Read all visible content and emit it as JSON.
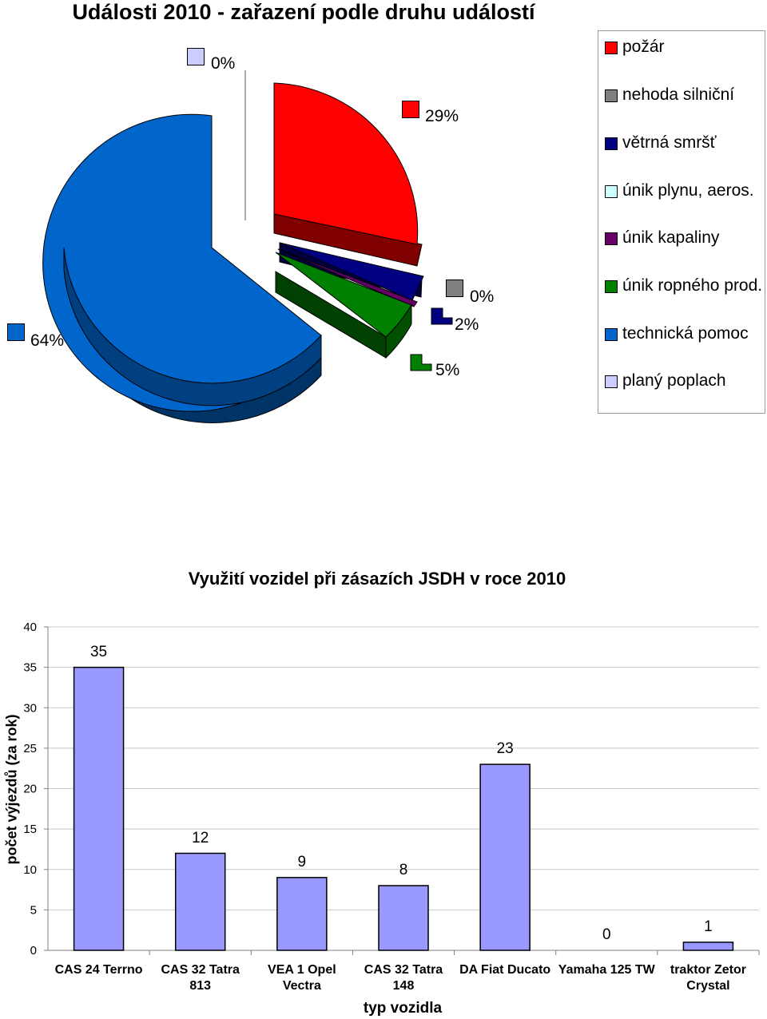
{
  "pie_chart": {
    "title": "Události 2010 - zařazení podle druhu událostí",
    "legend": [
      {
        "label": "požár",
        "color": "#ff0000"
      },
      {
        "label": "nehoda silniční",
        "color": "#808080"
      },
      {
        "label": "větrná smršť",
        "color": "#000080"
      },
      {
        "label": "únik plynu, aeros.",
        "color": "#ccffff"
      },
      {
        "label": "únik kapaliny",
        "color": "#660066"
      },
      {
        "label": "únik ropného prod.",
        "color": "#008000"
      },
      {
        "label": "technická pomoc",
        "color": "#0066cc"
      },
      {
        "label": "planý poplach",
        "color": "#ccccff"
      }
    ],
    "data_labels": {
      "pozar": "29%",
      "nehoda": "0%",
      "vetrna": "2%",
      "ropne": "5%",
      "technicka": "64%",
      "plany": "0%"
    }
  },
  "bar_chart": {
    "title": "Využití vozidel při zásazích JSDH v roce 2010",
    "ylabel": "počet výjezdů (za rok)",
    "xlabel": "typ vozidla",
    "y_ticks": [
      "0",
      "5",
      "10",
      "15",
      "20",
      "25",
      "30",
      "35",
      "40"
    ],
    "value_labels": [
      "35",
      "12",
      "9",
      "8",
      "23",
      "0",
      "1"
    ],
    "category_labels": [
      "CAS 24 Terrno",
      "CAS 32 Tatra 813",
      "VEA 1 Opel Vectra",
      "CAS 32 Tatra 148",
      "DA Fiat Ducato",
      "Yamaha 125 TW",
      "traktor Zetor Crystal"
    ]
  },
  "chart_data": [
    {
      "type": "pie",
      "title": "Události 2010 - zařazení podle druhu událostí",
      "categories": [
        "požár",
        "nehoda silniční",
        "větrná smršť",
        "únik plynu, aeros.",
        "únik kapaliny",
        "únik ropného prod.",
        "technická pomoc",
        "planý poplach"
      ],
      "values": [
        29,
        0,
        2,
        0,
        0,
        5,
        64,
        0
      ],
      "value_unit": "%",
      "colors": [
        "#ff0000",
        "#808080",
        "#000080",
        "#ccffff",
        "#660066",
        "#008000",
        "#0066cc",
        "#ccccff"
      ],
      "legend_position": "right"
    },
    {
      "type": "bar",
      "title": "Využití vozidel při zásazích JSDH v roce 2010",
      "categories": [
        "CAS 24 Terrno",
        "CAS 32 Tatra 813",
        "VEA 1 Opel Vectra",
        "CAS 32 Tatra 148",
        "DA Fiat Ducato",
        "Yamaha 125 TW",
        "traktor Zetor Crystal"
      ],
      "values": [
        35,
        12,
        9,
        8,
        23,
        0,
        1
      ],
      "xlabel": "typ vozidla",
      "ylabel": "počet výjezdů (za rok)",
      "ylim": [
        0,
        40
      ],
      "bar_color": "#9999ff",
      "grid": true
    }
  ]
}
